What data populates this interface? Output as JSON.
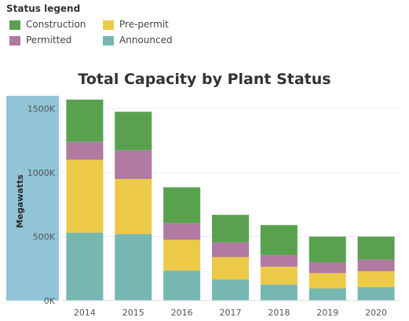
{
  "legend": {
    "title": "Status legend",
    "items": [
      {
        "label": "Construction",
        "color": "#59a14f"
      },
      {
        "label": "Pre-permit",
        "color": "#edc948"
      },
      {
        "label": "Permitted",
        "color": "#b07aa1"
      },
      {
        "label": "Announced",
        "color": "#76b7b2"
      }
    ]
  },
  "chart_data": {
    "type": "bar",
    "stacked": true,
    "title": "Total Capacity by Plant Status",
    "xlabel": "",
    "ylabel": "Megawatts",
    "ylim": [
      0,
      1600000
    ],
    "yticks": [
      0,
      500000,
      1000000,
      1500000
    ],
    "ytick_labels": [
      "0K",
      "500K",
      "1000K",
      "1500K"
    ],
    "grid": true,
    "legend_position": "top-left",
    "categories": [
      "2014",
      "2015",
      "2016",
      "2017",
      "2018",
      "2019",
      "2020"
    ],
    "series": [
      {
        "name": "Announced",
        "color": "#76b7b2",
        "values": [
          530000,
          520000,
          235000,
          165000,
          125000,
          95000,
          105000
        ]
      },
      {
        "name": "Pre-permit",
        "color": "#edc948",
        "values": [
          570000,
          430000,
          240000,
          175000,
          140000,
          120000,
          125000
        ]
      },
      {
        "name": "Permitted",
        "color": "#b07aa1",
        "values": [
          140000,
          225000,
          130000,
          115000,
          90000,
          85000,
          90000
        ]
      },
      {
        "name": "Construction",
        "color": "#59a14f",
        "values": [
          330000,
          300000,
          280000,
          215000,
          235000,
          200000,
          180000
        ]
      }
    ]
  }
}
